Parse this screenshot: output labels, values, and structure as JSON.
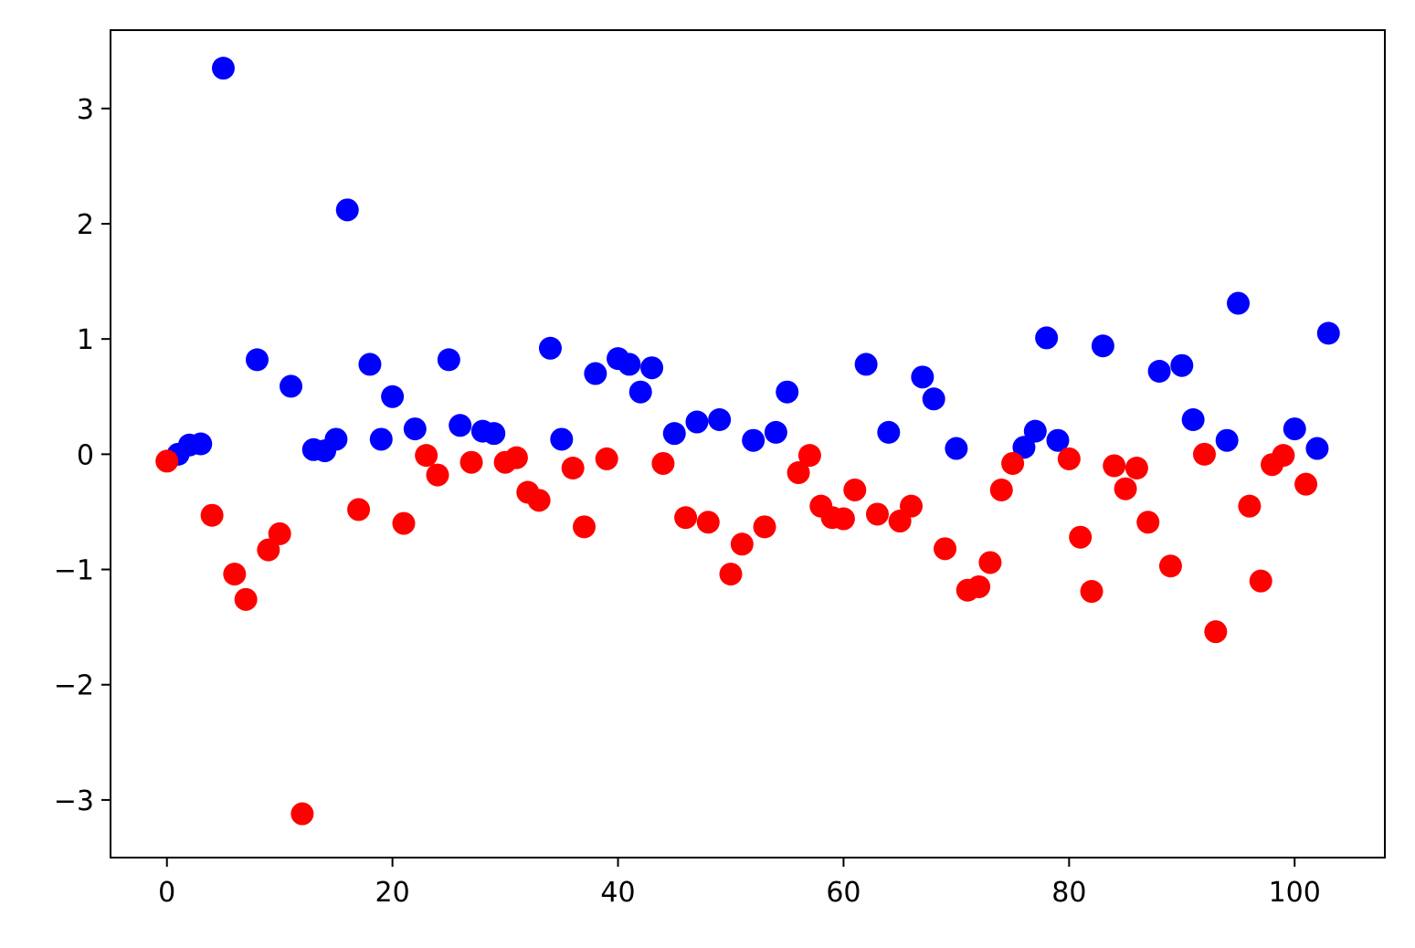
{
  "chart_data": {
    "type": "scatter",
    "title": "",
    "xlabel": "",
    "ylabel": "",
    "xlim": [
      -5,
      108
    ],
    "ylim": [
      -3.5,
      3.68
    ],
    "grid": false,
    "legend": "none",
    "x_ticks": [
      0,
      20,
      40,
      60,
      80,
      100
    ],
    "x_tick_labels": [
      "0",
      "20",
      "40",
      "60",
      "80",
      "100"
    ],
    "y_ticks": [
      -3,
      -2,
      -1,
      0,
      1,
      2,
      3
    ],
    "y_tick_labels": [
      "−3",
      "−2",
      "−1",
      "0",
      "1",
      "2",
      "3"
    ],
    "series": [
      {
        "color": "#0000ff",
        "points": [
          [
            1,
            0.0
          ],
          [
            2,
            0.08
          ],
          [
            3,
            0.09
          ],
          [
            5,
            3.35
          ],
          [
            8,
            0.82
          ],
          [
            11,
            0.59
          ],
          [
            13,
            0.04
          ],
          [
            14,
            0.03
          ],
          [
            15,
            0.13
          ],
          [
            16,
            2.12
          ],
          [
            18,
            0.78
          ],
          [
            19,
            0.13
          ],
          [
            20,
            0.5
          ],
          [
            22,
            0.22
          ],
          [
            25,
            0.82
          ],
          [
            26,
            0.25
          ],
          [
            28,
            0.2
          ],
          [
            29,
            0.18
          ],
          [
            34,
            0.92
          ],
          [
            35,
            0.13
          ],
          [
            38,
            0.7
          ],
          [
            40,
            0.83
          ],
          [
            41,
            0.78
          ],
          [
            42,
            0.54
          ],
          [
            43,
            0.75
          ],
          [
            45,
            0.18
          ],
          [
            47,
            0.28
          ],
          [
            49,
            0.3
          ],
          [
            52,
            0.12
          ],
          [
            54,
            0.19
          ],
          [
            55,
            0.54
          ],
          [
            62,
            0.78
          ],
          [
            64,
            0.19
          ],
          [
            67,
            0.67
          ],
          [
            68,
            0.48
          ],
          [
            70,
            0.05
          ],
          [
            76,
            0.06
          ],
          [
            77,
            0.2
          ],
          [
            78,
            1.01
          ],
          [
            79,
            0.12
          ],
          [
            83,
            0.94
          ],
          [
            88,
            0.72
          ],
          [
            90,
            0.77
          ],
          [
            91,
            0.3
          ],
          [
            94,
            0.12
          ],
          [
            95,
            1.31
          ],
          [
            100,
            0.22
          ],
          [
            102,
            0.05
          ],
          [
            103,
            1.05
          ]
        ]
      },
      {
        "color": "#ff0000",
        "points": [
          [
            0,
            -0.06
          ],
          [
            4,
            -0.53
          ],
          [
            6,
            -1.04
          ],
          [
            7,
            -1.26
          ],
          [
            9,
            -0.83
          ],
          [
            10,
            -0.69
          ],
          [
            12,
            -3.12
          ],
          [
            17,
            -0.48
          ],
          [
            21,
            -0.6
          ],
          [
            23,
            -0.01
          ],
          [
            24,
            -0.18
          ],
          [
            27,
            -0.07
          ],
          [
            30,
            -0.07
          ],
          [
            31,
            -0.03
          ],
          [
            32,
            -0.33
          ],
          [
            33,
            -0.4
          ],
          [
            36,
            -0.12
          ],
          [
            37,
            -0.63
          ],
          [
            39,
            -0.04
          ],
          [
            44,
            -0.08
          ],
          [
            46,
            -0.55
          ],
          [
            48,
            -0.59
          ],
          [
            50,
            -1.04
          ],
          [
            51,
            -0.78
          ],
          [
            53,
            -0.63
          ],
          [
            56,
            -0.16
          ],
          [
            57,
            -0.01
          ],
          [
            58,
            -0.45
          ],
          [
            59,
            -0.55
          ],
          [
            60,
            -0.56
          ],
          [
            61,
            -0.31
          ],
          [
            63,
            -0.52
          ],
          [
            65,
            -0.58
          ],
          [
            66,
            -0.45
          ],
          [
            69,
            -0.82
          ],
          [
            71,
            -1.18
          ],
          [
            72,
            -1.15
          ],
          [
            73,
            -0.94
          ],
          [
            74,
            -0.31
          ],
          [
            75,
            -0.08
          ],
          [
            80,
            -0.04
          ],
          [
            81,
            -0.72
          ],
          [
            82,
            -1.19
          ],
          [
            84,
            -0.1
          ],
          [
            85,
            -0.3
          ],
          [
            86,
            -0.12
          ],
          [
            87,
            -0.59
          ],
          [
            89,
            -0.97
          ],
          [
            92,
            0.0
          ],
          [
            93,
            -1.54
          ],
          [
            96,
            -0.45
          ],
          [
            97,
            -1.1
          ],
          [
            98,
            -0.09
          ],
          [
            99,
            -0.01
          ],
          [
            101,
            -0.26
          ]
        ]
      }
    ]
  }
}
